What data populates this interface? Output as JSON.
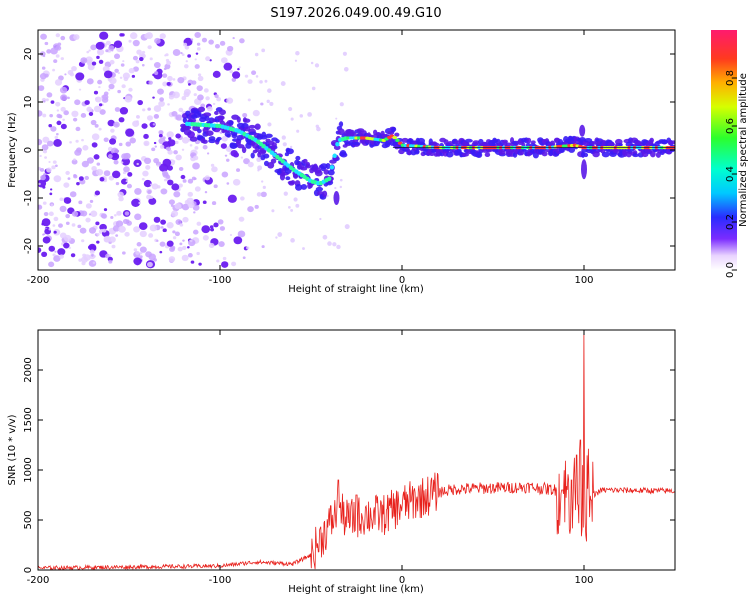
{
  "title": "S197.2026.049.00.49.G10",
  "chart_data": [
    {
      "type": "heatmap",
      "name": "spectrogram",
      "xlabel": "Height of straight line (km)",
      "ylabel": "Frequency (Hz)",
      "xlim": [
        -200,
        150
      ],
      "ylim": [
        -25,
        25
      ],
      "xticks": [
        -200,
        -100,
        0,
        100
      ],
      "yticks": [
        20,
        10,
        0,
        -10,
        -20
      ],
      "ridge": {
        "description_points": [
          [
            -120,
            5.5
          ],
          [
            -100,
            5
          ],
          [
            -90,
            4
          ],
          [
            -80,
            2
          ],
          [
            -70,
            -1
          ],
          [
            -60,
            -4
          ],
          [
            -50,
            -6.5
          ],
          [
            -45,
            -7
          ],
          [
            -40,
            -6
          ],
          [
            -35,
            2
          ],
          [
            -30,
            2.5
          ],
          [
            -20,
            2.5
          ],
          [
            -10,
            2
          ],
          [
            -5,
            3
          ],
          [
            0,
            1
          ],
          [
            20,
            0.5
          ],
          [
            50,
            0.5
          ],
          [
            80,
            0.5
          ],
          [
            95,
            1
          ],
          [
            100,
            0.5
          ],
          [
            120,
            0.5
          ],
          [
            150,
            0.5
          ]
        ]
      },
      "colorbar": {
        "label": "Normalized spectral amplitude",
        "ticks": [
          "0.0",
          "0.2",
          "0.4",
          "0.6",
          "0.8"
        ],
        "range": [
          0,
          1
        ]
      }
    },
    {
      "type": "line",
      "name": "snr",
      "xlabel": "Height of straight line (km)",
      "ylabel": "SNR (10 * v/v)",
      "xlim": [
        -200,
        150
      ],
      "ylim": [
        0,
        2400
      ],
      "xticks": [
        -200,
        -100,
        0,
        100
      ],
      "yticks": [
        0,
        500,
        1000,
        1500,
        2000
      ],
      "color": "#e8211c",
      "series_trend": [
        [
          -200,
          20
        ],
        [
          -150,
          30
        ],
        [
          -100,
          40
        ],
        [
          -80,
          80
        ],
        [
          -60,
          60
        ],
        [
          -50,
          150
        ],
        [
          -45,
          300
        ],
        [
          -40,
          450
        ],
        [
          -35,
          600
        ],
        [
          -30,
          500
        ],
        [
          -20,
          550
        ],
        [
          -10,
          550
        ],
        [
          0,
          650
        ],
        [
          10,
          720
        ],
        [
          20,
          780
        ],
        [
          30,
          810
        ],
        [
          50,
          820
        ],
        [
          70,
          830
        ],
        [
          85,
          800
        ],
        [
          90,
          750
        ],
        [
          95,
          750
        ],
        [
          100,
          700
        ],
        [
          110,
          800
        ],
        [
          150,
          790
        ]
      ],
      "spikes": [
        [
          -35,
          900
        ],
        [
          -25,
          750
        ],
        [
          88,
          800
        ],
        [
          93,
          900
        ],
        [
          96,
          1150
        ],
        [
          98,
          1300
        ],
        [
          100,
          2400
        ],
        [
          102,
          1650
        ],
        [
          104,
          700
        ]
      ]
    }
  ]
}
